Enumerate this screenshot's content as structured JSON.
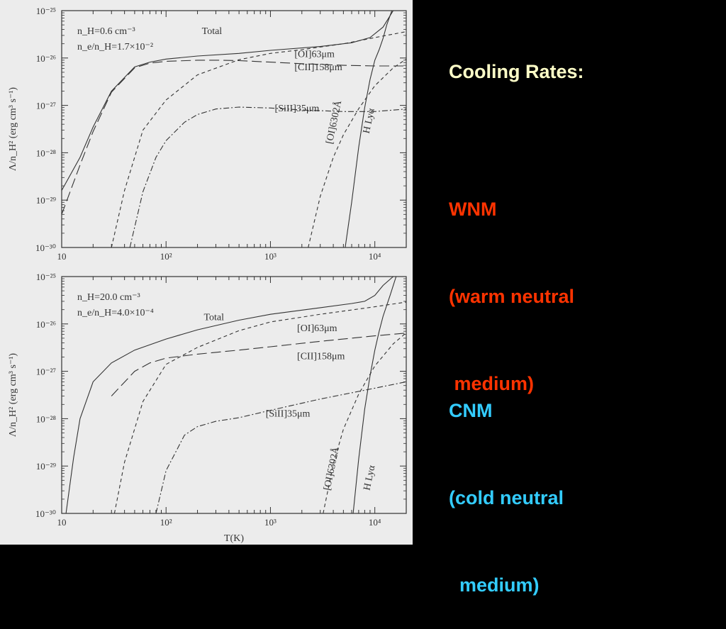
{
  "slide": {
    "title": "Cooling Rates:",
    "wnm": {
      "label": "WNM",
      "line1": "(warm neutral",
      "line2": " medium)"
    },
    "cnm": {
      "label": "CNM",
      "line1": "(cold neutral",
      "line2": "  medium)"
    }
  },
  "colors": {
    "background": "#000000",
    "title": "#ffffc8",
    "wnm": "#ff3300",
    "cnm": "#33ccff",
    "plot_bg": "#ececec"
  },
  "chart_data": [
    {
      "type": "line",
      "panel": "top",
      "title": "",
      "xlabel": "",
      "ylabel": "Λ/n_H² (erg cm³ s⁻¹)",
      "xscale": "log",
      "yscale": "log",
      "xlim": [
        10,
        20000
      ],
      "ylim": [
        1e-30,
        1e-25
      ],
      "xticks": [
        "10",
        "10²",
        "10³",
        "10⁴"
      ],
      "yticks": [
        "10⁻³⁰",
        "10⁻²⁹",
        "10⁻²⁸",
        "10⁻²⁷",
        "10⁻²⁶",
        "10⁻²⁵"
      ],
      "annotations": [
        "n_H=0.6 cm⁻³",
        "n_e/n_H=1.7×10⁻²"
      ],
      "series": [
        {
          "name": "Total",
          "style": "solid",
          "label_at": [
            220,
            3.2e-26
          ],
          "x": [
            10,
            15,
            20,
            30,
            50,
            70,
            100,
            200,
            500,
            1000,
            3000,
            6000,
            9000,
            12000,
            15000
          ],
          "y": [
            1.6e-29,
            8e-29,
            3.5e-28,
            2e-27,
            6.5e-27,
            8.2e-27,
            9.5e-27,
            1.1e-26,
            1.25e-26,
            1.45e-26,
            1.75e-26,
            2.1e-26,
            2.7e-26,
            4.5e-26,
            1e-25
          ]
        },
        {
          "name": "[OI]63μm",
          "style": "dashed",
          "label_at": [
            1700,
            1.05e-26
          ],
          "x": [
            30,
            40,
            60,
            100,
            200,
            500,
            1000,
            2000,
            5000,
            10000,
            20000
          ],
          "y": [
            1e-30,
            1.6e-29,
            3e-28,
            1.3e-27,
            4.4e-27,
            9.2e-27,
            1.25e-26,
            1.5e-26,
            2e-26,
            2.7e-26,
            3.6e-26
          ]
        },
        {
          "name": "[CII]158μm",
          "style": "long-dashed",
          "label_at": [
            1700,
            5.5e-27
          ],
          "x": [
            10,
            15,
            20,
            30,
            50,
            70,
            100,
            200,
            300,
            500,
            1000,
            2000,
            5000,
            10000,
            20000
          ],
          "y": [
            5e-30,
            5.5e-29,
            2.8e-28,
            1.9e-27,
            6.2e-27,
            7.8e-27,
            8.5e-27,
            9e-27,
            9e-27,
            8.8e-27,
            8.2e-27,
            7.6e-27,
            7e-27,
            6.8e-27,
            6.8e-27
          ]
        },
        {
          "name": "[SiII]35μm",
          "style": "dash-dot",
          "label_at": [
            1100,
            7.5e-28
          ],
          "x": [
            45,
            60,
            80,
            100,
            150,
            200,
            300,
            500,
            1000,
            2000,
            5000,
            10000,
            20000
          ],
          "y": [
            1e-30,
            1.5e-29,
            8e-29,
            1.8e-28,
            4.4e-28,
            6.4e-28,
            8.4e-28,
            9.2e-28,
            8.8e-28,
            8e-28,
            7.4e-28,
            7.4e-28,
            8.4e-28
          ]
        },
        {
          "name": "[OI]6302Å",
          "style": "dashed",
          "label_at": [
            3900,
            1.5e-28
          ],
          "label_rotate": -78,
          "x": [
            2300,
            3000,
            4000,
            5000,
            7000,
            10000,
            15000,
            20000
          ],
          "y": [
            1e-30,
            1.2e-29,
            8e-29,
            2.4e-28,
            8.5e-28,
            2.6e-27,
            6.2e-27,
            9.5e-27
          ]
        },
        {
          "name": "H Lyα",
          "style": "solid",
          "label_at": [
            8800,
            2.5e-28
          ],
          "label_rotate": -78,
          "x": [
            5200,
            6000,
            7000,
            8000,
            9000,
            10000,
            11000,
            12000,
            13000,
            15000
          ],
          "y": [
            1e-30,
            9e-30,
            1.3e-28,
            9e-28,
            3.5e-27,
            9e-27,
            1.5e-26,
            2.6e-26,
            5e-26,
            1.2e-25
          ]
        }
      ]
    },
    {
      "type": "line",
      "panel": "bottom",
      "title": "",
      "xlabel": "T(K)",
      "ylabel": "Λ/n_H² (erg cm³ s⁻¹)",
      "xscale": "log",
      "yscale": "log",
      "xlim": [
        10,
        20000
      ],
      "ylim": [
        1e-30,
        1e-25
      ],
      "xticks": [
        "10",
        "10²",
        "10³",
        "10⁴"
      ],
      "yticks": [
        "10⁻³⁰",
        "10⁻²⁹",
        "10⁻²⁸",
        "10⁻²⁷",
        "10⁻²⁶",
        "10⁻²⁵"
      ],
      "annotations": [
        "n_H=20.0 cm⁻³",
        "n_e/n_H=4.0×10⁻⁴"
      ],
      "series": [
        {
          "name": "Total",
          "style": "solid",
          "label_at": [
            230,
            1.2e-26
          ],
          "x": [
            11,
            13,
            15,
            20,
            30,
            50,
            100,
            200,
            500,
            1000,
            3000,
            6000,
            8000,
            10000,
            12000,
            15000
          ],
          "y": [
            1e-30,
            1.5e-29,
            1e-28,
            6e-28,
            1.5e-27,
            2.8e-27,
            4.8e-27,
            7.5e-27,
            1.2e-26,
            1.6e-26,
            2.2e-26,
            2.7e-26,
            3e-26,
            4e-26,
            6.5e-26,
            1e-25
          ]
        },
        {
          "name": "[OI]63μm",
          "style": "dashed",
          "label_at": [
            1800,
            7e-27
          ],
          "x": [
            32,
            40,
            60,
            100,
            200,
            500,
            1000,
            3000,
            10000,
            20000
          ],
          "y": [
            1e-30,
            1.2e-29,
            2.3e-28,
            1.4e-27,
            3.2e-27,
            7.2e-27,
            1.1e-26,
            1.6e-26,
            2.3e-26,
            2.9e-26
          ]
        },
        {
          "name": "[CII]158μm",
          "style": "long-dashed",
          "label_at": [
            1800,
            1.8e-27
          ],
          "x": [
            30,
            50,
            70,
            100,
            200,
            500,
            1000,
            3000,
            10000,
            20000
          ],
          "y": [
            3e-28,
            1e-27,
            1.5e-27,
            1.9e-27,
            2.3e-27,
            2.8e-27,
            3.3e-27,
            4.3e-27,
            5.6e-27,
            6.4e-27
          ]
        },
        {
          "name": "[SiII]35μm",
          "style": "dash-dot",
          "label_at": [
            900,
            1.1e-28
          ],
          "x": [
            80,
            100,
            150,
            200,
            300,
            500,
            1000,
            3000,
            10000,
            20000
          ],
          "y": [
            1e-30,
            8e-30,
            4.5e-29,
            6.8e-29,
            8.8e-29,
            1.05e-28,
            1.5e-28,
            2.6e-28,
            4.4e-28,
            6e-28
          ]
        },
        {
          "name": "[OI]6302Å",
          "style": "dashed",
          "label_at": [
            3700,
            3e-30
          ],
          "label_rotate": -78,
          "x": [
            3200,
            4000,
            5000,
            7000,
            10000,
            15000,
            20000
          ],
          "y": [
            1e-30,
            1.1e-29,
            6e-29,
            3.3e-28,
            1.3e-27,
            3.8e-27,
            6.5e-27
          ]
        },
        {
          "name": "H Lyα",
          "style": "solid",
          "label_at": [
            8900,
            3e-30
          ],
          "label_rotate": -78,
          "x": [
            6200,
            7000,
            8000,
            9000,
            10000,
            11000,
            12000,
            14000,
            16000
          ],
          "y": [
            1e-30,
            1.4e-29,
            1.6e-28,
            8e-28,
            2.8e-27,
            7e-27,
            1.45e-26,
            4e-26,
            1e-25
          ]
        }
      ]
    }
  ]
}
